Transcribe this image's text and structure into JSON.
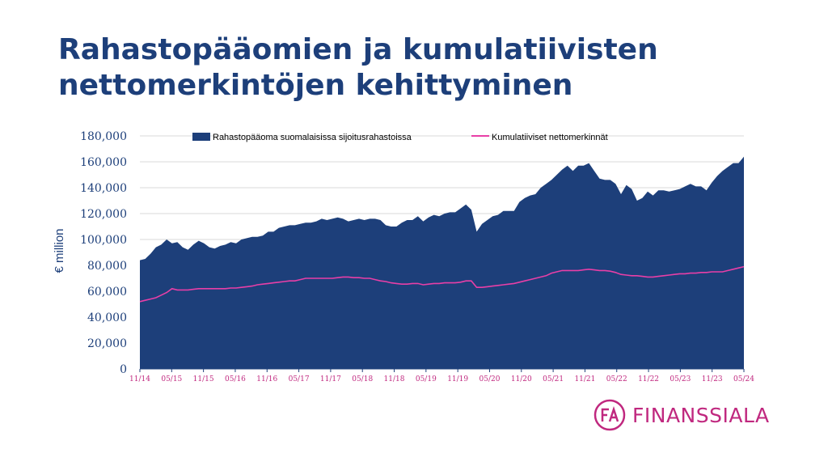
{
  "title_line1": "Rahastopääomien ja kumulatiivisten",
  "title_line2": "nettomerkintöjen kehittyminen",
  "logo": {
    "text": "FINANSSIALA",
    "mark": "FA"
  },
  "colors": {
    "title": "#1d3f7a",
    "area": "#1d3f7a",
    "line": "#e83fa7",
    "accent": "#c0287f"
  },
  "chart_data": {
    "type": "area",
    "ylabel": "€ million",
    "ylim": [
      0,
      180000
    ],
    "yticks": [
      "0",
      "20,000",
      "40,000",
      "60,000",
      "80,000",
      "100,000",
      "120,000",
      "140,000",
      "160,000",
      "180,000"
    ],
    "ytick_values": [
      0,
      20000,
      40000,
      60000,
      80000,
      100000,
      120000,
      140000,
      160000,
      180000
    ],
    "xticks": [
      "11/14",
      "05/15",
      "11/15",
      "05/16",
      "11/16",
      "05/17",
      "11/17",
      "05/18",
      "11/18",
      "05/19",
      "11/19",
      "05/20",
      "11/20",
      "05/21",
      "11/21",
      "05/22",
      "11/22",
      "05/23",
      "11/23",
      "05/24"
    ],
    "grid": true,
    "legend_position": "top",
    "series": [
      {
        "name": "Rahastopääoma suomalaisissa sijoitusrahastoissa",
        "kind": "area",
        "values": [
          84000,
          85000,
          89000,
          94000,
          96000,
          100000,
          97000,
          98000,
          94000,
          92000,
          96000,
          99000,
          97000,
          94000,
          93000,
          95000,
          96000,
          98000,
          97000,
          100000,
          101000,
          102000,
          102000,
          103000,
          106000,
          106000,
          109000,
          110000,
          111000,
          111000,
          112000,
          113000,
          113000,
          114000,
          116000,
          115000,
          116000,
          117000,
          116000,
          114000,
          115000,
          116000,
          115000,
          116000,
          116000,
          115000,
          111000,
          110000,
          110000,
          113000,
          115000,
          115000,
          118000,
          114000,
          117000,
          119000,
          118000,
          120000,
          121000,
          121000,
          124000,
          127000,
          123000,
          106000,
          112000,
          115000,
          118000,
          119000,
          122000,
          122000,
          122000,
          129000,
          132000,
          134000,
          135000,
          140000,
          143000,
          146000,
          150000,
          154000,
          157000,
          153000,
          157000,
          157000,
          159000,
          153000,
          147000,
          146000,
          146000,
          143000,
          135000,
          142000,
          139000,
          130000,
          132000,
          137000,
          134000,
          138000,
          138000,
          137000,
          138000,
          139000,
          141000,
          143000,
          141000,
          141000,
          138000,
          144000,
          149000,
          153000,
          156000,
          159000,
          159000,
          164000
        ]
      },
      {
        "name": "Kumulatiiviset nettomerkinnät",
        "kind": "line",
        "values": [
          52000,
          53000,
          54000,
          55000,
          57000,
          59000,
          62000,
          61000,
          61000,
          61000,
          61500,
          62000,
          62000,
          62000,
          62000,
          62000,
          62000,
          62500,
          62500,
          63000,
          63500,
          64000,
          65000,
          65500,
          66000,
          66500,
          67000,
          67500,
          68000,
          68000,
          69000,
          70000,
          70000,
          70000,
          70000,
          70000,
          70000,
          70500,
          71000,
          71000,
          70500,
          70500,
          70000,
          70000,
          69000,
          68000,
          67500,
          66500,
          66000,
          65500,
          65500,
          66000,
          66000,
          65000,
          65500,
          66000,
          66000,
          66500,
          66500,
          66500,
          67000,
          68000,
          68000,
          63000,
          63000,
          63500,
          64000,
          64500,
          65000,
          65500,
          66000,
          67000,
          68000,
          69000,
          70000,
          71000,
          72000,
          74000,
          75000,
          76000,
          76000,
          76000,
          76000,
          76500,
          77000,
          76500,
          76000,
          76000,
          75500,
          74500,
          73000,
          72500,
          72000,
          72000,
          71500,
          71000,
          71000,
          71500,
          72000,
          72500,
          73000,
          73500,
          73500,
          74000,
          74000,
          74500,
          74500,
          75000,
          75000,
          75000,
          76000,
          77000,
          78000,
          79000
        ]
      }
    ]
  }
}
